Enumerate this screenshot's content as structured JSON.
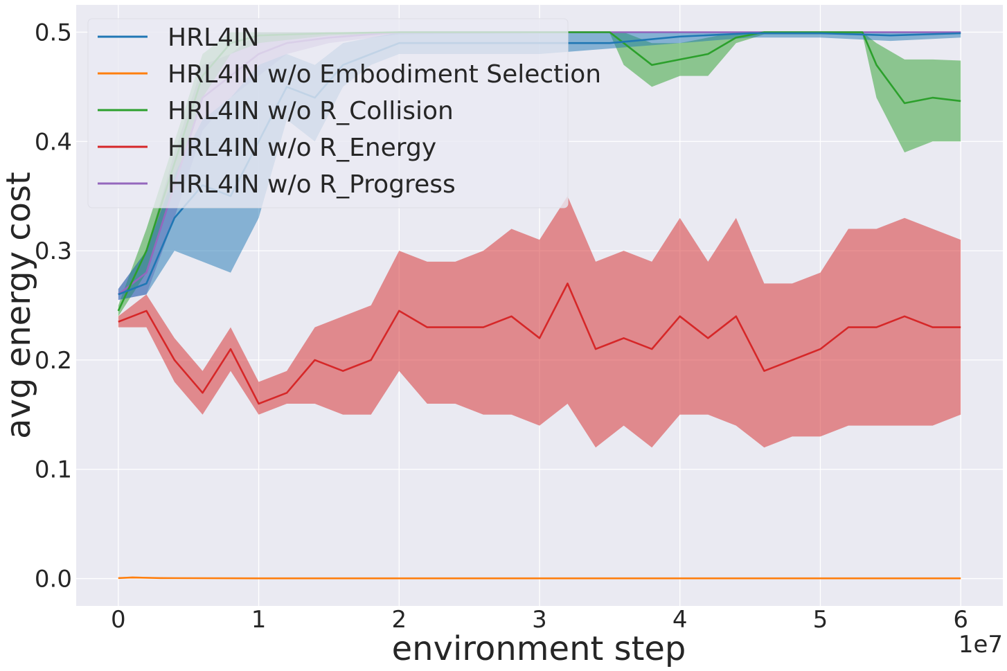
{
  "chart_data": {
    "type": "line",
    "title": "",
    "xlabel": "environment step",
    "ylabel": "avg energy cost",
    "x_offset_text": "1e7",
    "xlim": [
      -0.3,
      6.3
    ],
    "ylim": [
      -0.025,
      0.525
    ],
    "xticks": [
      0,
      1,
      2,
      3,
      4,
      5,
      6
    ],
    "xtick_labels": [
      "0",
      "1",
      "2",
      "3",
      "4",
      "5",
      "6"
    ],
    "yticks": [
      0.0,
      0.1,
      0.2,
      0.3,
      0.4,
      0.5
    ],
    "ytick_labels": [
      "0.0",
      "0.1",
      "0.2",
      "0.3",
      "0.4",
      "0.5"
    ],
    "grid": true,
    "legend_position": "top-left",
    "x_units_note": "x values in units of 1e7 environment steps",
    "series": [
      {
        "name": "HRL4IN",
        "color": "#1f77b4",
        "x": [
          0.0,
          0.2,
          0.4,
          0.6,
          0.8,
          1.0,
          1.2,
          1.4,
          1.6,
          1.8,
          2.0,
          2.5,
          3.0,
          3.5,
          4.0,
          4.5,
          5.0,
          5.5,
          6.0
        ],
        "values": [
          0.26,
          0.27,
          0.33,
          0.36,
          0.35,
          0.4,
          0.45,
          0.44,
          0.47,
          0.48,
          0.49,
          0.49,
          0.49,
          0.49,
          0.496,
          0.499,
          0.499,
          0.497,
          0.499
        ],
        "lower": [
          0.255,
          0.26,
          0.3,
          0.29,
          0.28,
          0.33,
          0.42,
          0.4,
          0.45,
          0.47,
          0.48,
          0.48,
          0.48,
          0.485,
          0.49,
          0.495,
          0.495,
          0.492,
          0.495
        ],
        "upper": [
          0.265,
          0.3,
          0.37,
          0.42,
          0.44,
          0.47,
          0.48,
          0.47,
          0.49,
          0.495,
          0.5,
          0.5,
          0.5,
          0.5,
          0.5,
          0.5,
          0.5,
          0.5,
          0.5
        ]
      },
      {
        "name": "HRL4IN w/o Embodiment Selection",
        "color": "#ff7f0e",
        "x": [
          0.0,
          0.1,
          0.3,
          1.0,
          2.0,
          3.0,
          4.0,
          5.0,
          6.0
        ],
        "values": [
          0.0005,
          0.001,
          0.0005,
          0.0002,
          0.0002,
          0.0002,
          0.0002,
          0.0002,
          0.0002
        ],
        "lower": [
          0.0,
          0.0,
          0.0,
          0.0,
          0.0,
          0.0,
          0.0,
          0.0,
          0.0
        ],
        "upper": [
          0.001,
          0.002,
          0.001,
          0.0005,
          0.0005,
          0.0005,
          0.0005,
          0.0005,
          0.0005
        ]
      },
      {
        "name": "HRL4IN w/o R_Collision",
        "color": "#2ca02c",
        "x": [
          0.0,
          0.2,
          0.4,
          0.6,
          0.8,
          1.0,
          1.5,
          2.0,
          3.0,
          3.5,
          3.6,
          3.8,
          4.0,
          4.2,
          4.4,
          4.6,
          5.0,
          5.3,
          5.4,
          5.6,
          5.8,
          6.0
        ],
        "values": [
          0.245,
          0.3,
          0.38,
          0.46,
          0.49,
          0.497,
          0.499,
          0.5,
          0.5,
          0.5,
          0.49,
          0.47,
          0.475,
          0.48,
          0.495,
          0.5,
          0.5,
          0.5,
          0.47,
          0.435,
          0.44,
          0.437
        ],
        "lower": [
          0.24,
          0.28,
          0.36,
          0.44,
          0.48,
          0.49,
          0.497,
          0.499,
          0.499,
          0.499,
          0.47,
          0.45,
          0.46,
          0.46,
          0.49,
          0.498,
          0.498,
          0.498,
          0.44,
          0.39,
          0.4,
          0.4
        ],
        "upper": [
          0.25,
          0.32,
          0.4,
          0.48,
          0.5,
          0.5,
          0.5,
          0.5,
          0.5,
          0.5,
          0.5,
          0.49,
          0.49,
          0.495,
          0.5,
          0.5,
          0.5,
          0.5,
          0.49,
          0.475,
          0.475,
          0.474
        ]
      },
      {
        "name": "HRL4IN w/o R_Energy",
        "color": "#d62728",
        "x": [
          0.0,
          0.2,
          0.4,
          0.6,
          0.8,
          1.0,
          1.2,
          1.4,
          1.6,
          1.8,
          2.0,
          2.2,
          2.4,
          2.6,
          2.8,
          3.0,
          3.2,
          3.4,
          3.6,
          3.8,
          4.0,
          4.2,
          4.4,
          4.6,
          4.8,
          5.0,
          5.2,
          5.4,
          5.6,
          5.8,
          6.0
        ],
        "values": [
          0.235,
          0.245,
          0.2,
          0.17,
          0.21,
          0.16,
          0.17,
          0.2,
          0.19,
          0.2,
          0.245,
          0.23,
          0.23,
          0.23,
          0.24,
          0.22,
          0.27,
          0.21,
          0.22,
          0.21,
          0.24,
          0.22,
          0.24,
          0.19,
          0.2,
          0.21,
          0.23,
          0.23,
          0.24,
          0.23,
          0.23
        ],
        "lower": [
          0.23,
          0.23,
          0.18,
          0.15,
          0.19,
          0.15,
          0.16,
          0.16,
          0.15,
          0.15,
          0.19,
          0.16,
          0.16,
          0.15,
          0.15,
          0.14,
          0.16,
          0.12,
          0.14,
          0.12,
          0.15,
          0.15,
          0.14,
          0.12,
          0.13,
          0.13,
          0.14,
          0.14,
          0.14,
          0.14,
          0.15
        ],
        "upper": [
          0.24,
          0.26,
          0.22,
          0.19,
          0.23,
          0.18,
          0.19,
          0.23,
          0.24,
          0.25,
          0.3,
          0.29,
          0.29,
          0.3,
          0.32,
          0.31,
          0.35,
          0.29,
          0.3,
          0.29,
          0.33,
          0.29,
          0.33,
          0.27,
          0.27,
          0.28,
          0.32,
          0.32,
          0.33,
          0.32,
          0.31
        ]
      },
      {
        "name": "HRL4IN w/o R_Progress",
        "color": "#9467bd",
        "x": [
          0.0,
          0.2,
          0.4,
          0.6,
          0.8,
          1.0,
          1.2,
          1.5,
          2.0,
          3.0,
          4.0,
          5.0,
          6.0
        ],
        "values": [
          0.26,
          0.28,
          0.36,
          0.44,
          0.46,
          0.48,
          0.49,
          0.495,
          0.5,
          0.5,
          0.5,
          0.5,
          0.5
        ],
        "lower": [
          0.255,
          0.26,
          0.33,
          0.41,
          0.44,
          0.46,
          0.48,
          0.49,
          0.498,
          0.499,
          0.499,
          0.499,
          0.499
        ],
        "upper": [
          0.265,
          0.3,
          0.39,
          0.47,
          0.48,
          0.5,
          0.5,
          0.5,
          0.5,
          0.5,
          0.5,
          0.5,
          0.5
        ]
      }
    ]
  }
}
